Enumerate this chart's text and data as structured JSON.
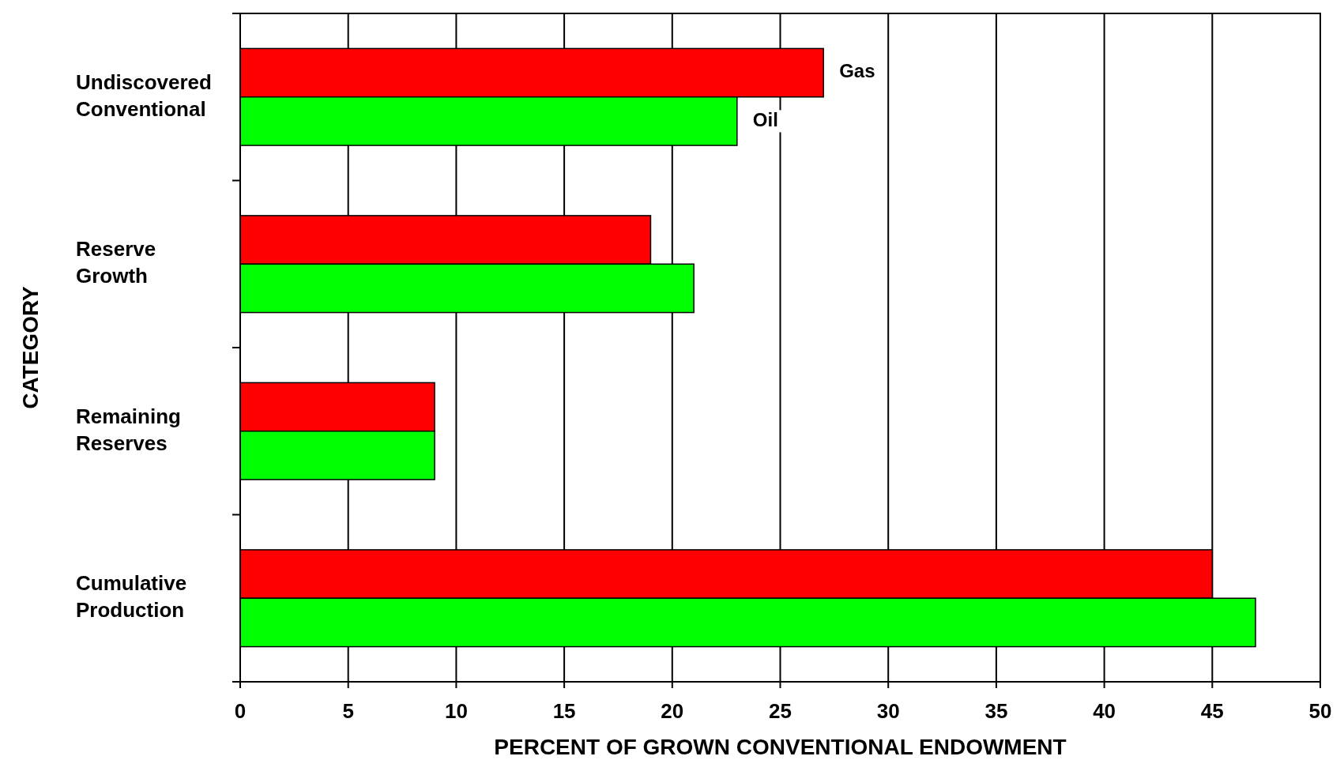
{
  "chart_data": {
    "type": "bar",
    "orientation": "horizontal",
    "xlabel": "PERCENT OF GROWN CONVENTIONAL ENDOWMENT",
    "ylabel": "CATEGORY",
    "categories": [
      "Undiscovered Conventional",
      "Reserve Growth",
      "Remaining Reserves",
      "Cumulative Production"
    ],
    "series": [
      {
        "name": "Gas",
        "color": "#ff0000",
        "values": [
          27,
          19,
          9,
          45
        ]
      },
      {
        "name": "Oil",
        "color": "#00ff00",
        "values": [
          23,
          21,
          9,
          47
        ]
      }
    ],
    "xlim": [
      0,
      50
    ],
    "xticks": [
      0,
      5,
      10,
      15,
      20,
      25,
      30,
      35,
      40,
      45,
      50
    ],
    "grid": "x",
    "legend": false
  }
}
